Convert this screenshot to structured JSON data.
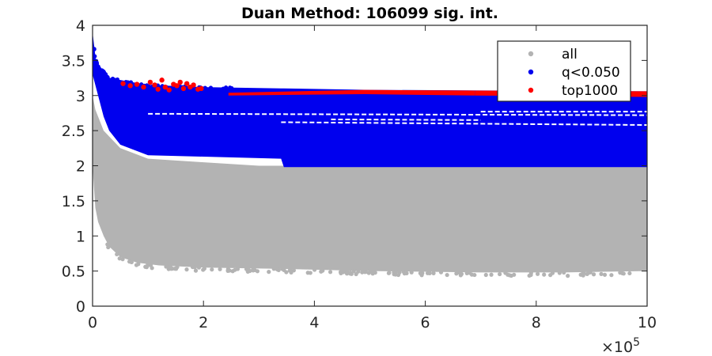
{
  "chart_data": {
    "type": "scatter",
    "title": "Duan Method: 106099 sig. int.",
    "xlabel": "",
    "ylabel": "",
    "xlim": [
      0,
      1000000
    ],
    "ylim": [
      0,
      4
    ],
    "x_ticks": [
      0,
      200000,
      400000,
      600000,
      800000,
      1000000
    ],
    "x_tick_labels": [
      "0",
      "2",
      "4",
      "6",
      "8",
      "10"
    ],
    "x_exponent_label": "×10",
    "x_exponent_power": "5",
    "y_ticks": [
      0,
      0.5,
      1,
      1.5,
      2,
      2.5,
      3,
      3.5,
      4
    ],
    "y_tick_labels": [
      "0",
      "0.5",
      "1",
      "1.5",
      "2",
      "2.5",
      "3",
      "3.5",
      "4"
    ],
    "grid": false,
    "legend_position": "top-right",
    "series": [
      {
        "name": "all",
        "color": "#b3b3b3",
        "band_lower": [
          [
            0,
            2.0
          ],
          [
            5000,
            1.4
          ],
          [
            10000,
            1.2
          ],
          [
            20000,
            1.0
          ],
          [
            30000,
            0.85
          ],
          [
            50000,
            0.7
          ],
          [
            80000,
            0.62
          ],
          [
            120000,
            0.58
          ],
          [
            200000,
            0.55
          ],
          [
            350000,
            0.53
          ],
          [
            500000,
            0.5
          ],
          [
            700000,
            0.48
          ],
          [
            850000,
            0.48
          ],
          [
            1000000,
            0.5
          ]
        ],
        "band_upper": [
          [
            0,
            3.0
          ],
          [
            5000,
            2.8
          ],
          [
            20000,
            2.5
          ],
          [
            50000,
            2.25
          ],
          [
            100000,
            2.1
          ],
          [
            300000,
            2.0
          ],
          [
            1000000,
            2.0
          ]
        ]
      },
      {
        "name": "q<0.050",
        "color": "#0000ee",
        "band_lower": [
          [
            0,
            3.3
          ],
          [
            10000,
            3.0
          ],
          [
            20000,
            2.7
          ],
          [
            30000,
            2.5
          ],
          [
            50000,
            2.3
          ],
          [
            100000,
            2.15
          ],
          [
            340000,
            2.1
          ],
          [
            345000,
            1.98
          ],
          [
            1000000,
            1.98
          ]
        ],
        "band_upper": [
          [
            0,
            3.9
          ],
          [
            3000,
            3.7
          ],
          [
            6000,
            3.5
          ],
          [
            15000,
            3.4
          ],
          [
            30000,
            3.25
          ],
          [
            100000,
            3.15
          ],
          [
            200000,
            3.12
          ],
          [
            500000,
            3.08
          ],
          [
            1000000,
            3.06
          ]
        ]
      },
      {
        "name": "top1000",
        "color": "#ff0000",
        "points": [
          [
            55000,
            3.17
          ],
          [
            68000,
            3.14
          ],
          [
            80000,
            3.16
          ],
          [
            92000,
            3.12
          ],
          [
            104000,
            3.19
          ],
          [
            112000,
            3.15
          ],
          [
            118000,
            3.09
          ],
          [
            125000,
            3.22
          ],
          [
            131000,
            3.12
          ],
          [
            138000,
            3.08
          ],
          [
            146000,
            3.16
          ],
          [
            152000,
            3.14
          ],
          [
            158000,
            3.19
          ],
          [
            164000,
            3.1
          ],
          [
            170000,
            3.17
          ],
          [
            176000,
            3.12
          ],
          [
            182000,
            3.15
          ],
          [
            190000,
            3.09
          ],
          [
            196000,
            3.1
          ]
        ],
        "band": [
          [
            245000,
            3.0,
            3.04
          ],
          [
            490000,
            3.02,
            3.08
          ],
          [
            690000,
            3.0,
            3.07
          ],
          [
            1000000,
            2.98,
            3.06
          ]
        ]
      }
    ]
  }
}
